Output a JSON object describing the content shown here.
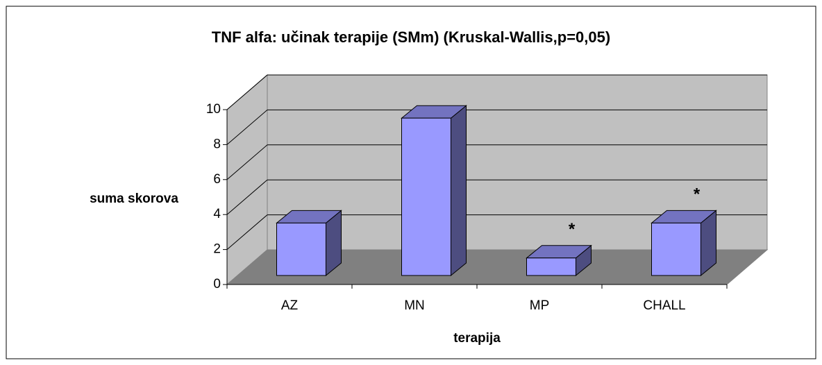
{
  "chart_data": {
    "type": "bar3d",
    "title": "TNF alfa: učinak terapije (SMm) (Kruskal-Wallis,p=0,05)",
    "x_label": "terapija",
    "y_label": "suma skorova",
    "categories": [
      "AZ",
      "MN",
      "MP",
      "CHALL"
    ],
    "values": [
      3,
      9,
      1,
      3
    ],
    "color": "#9999ff",
    "ylim": [
      0,
      10
    ],
    "yticks": [
      0,
      2,
      4,
      6,
      8,
      10
    ],
    "grid": true,
    "annotations": [
      {
        "text": "*",
        "x": "MP"
      },
      {
        "text": "*",
        "x": "CHALL"
      }
    ]
  }
}
